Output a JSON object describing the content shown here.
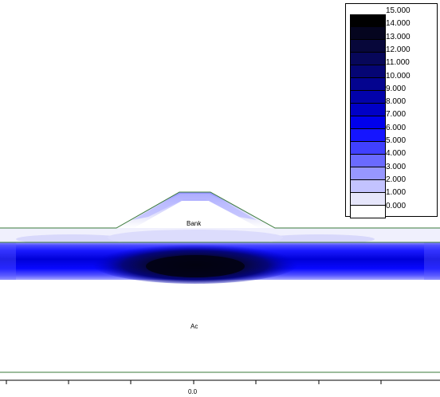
{
  "legend": {
    "entries": [
      {
        "label": "15.000",
        "color": "#000000"
      },
      {
        "label": "14.000",
        "color": "#05051f"
      },
      {
        "label": "13.000",
        "color": "#07073a"
      },
      {
        "label": "12.000",
        "color": "#070759"
      },
      {
        "label": "11.000",
        "color": "#050574"
      },
      {
        "label": "10.000",
        "color": "#04048f"
      },
      {
        "label": "9.000",
        "color": "#0202aa"
      },
      {
        "label": "8.000",
        "color": "#0000c6"
      },
      {
        "label": "7.000",
        "color": "#0000ec"
      },
      {
        "label": "6.000",
        "color": "#1515ff"
      },
      {
        "label": "5.000",
        "color": "#4040ff"
      },
      {
        "label": "4.000",
        "color": "#6a6aff"
      },
      {
        "label": "3.000",
        "color": "#9797ff"
      },
      {
        "label": "2.000",
        "color": "#c3c3ff"
      },
      {
        "label": "1.000",
        "color": "#e6e6fb"
      },
      {
        "label": "0.000",
        "color": "#ffffff"
      }
    ]
  },
  "labels": {
    "bank": "Bank",
    "layer": "Ac",
    "axis_center": "0.0"
  },
  "colors": {
    "boundary": "#3a7a3a"
  }
}
